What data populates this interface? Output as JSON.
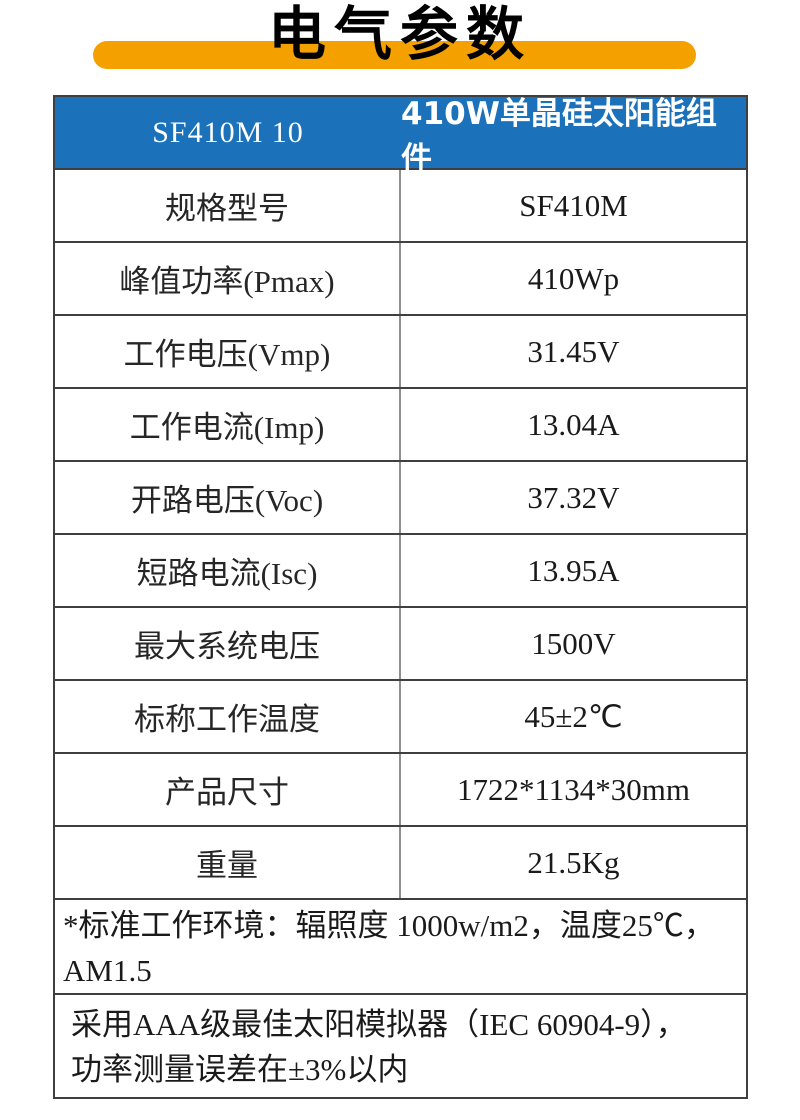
{
  "title": "电气参数",
  "colors": {
    "header_blue": "#1b71ba",
    "banner_orange": "#F4A100",
    "border_dark": "#3f3f3f"
  },
  "table": {
    "header": {
      "model_code": "SF410M 10",
      "product_name": "410W单晶硅太阳能组件"
    },
    "rows": [
      {
        "label": "规格型号",
        "value": "SF410M"
      },
      {
        "label": "峰值功率(Pmax)",
        "value": "410Wp"
      },
      {
        "label": "工作电压(Vmp)",
        "value": "31.45V"
      },
      {
        "label": "工作电流(Imp)",
        "value": "13.04A"
      },
      {
        "label": "开路电压(Voc)",
        "value": "37.32V"
      },
      {
        "label": "短路电流(Isc)",
        "value": "13.95A"
      },
      {
        "label": "最大系统电压",
        "value": "1500V"
      },
      {
        "label": "标称工作温度",
        "value": "45±2℃"
      },
      {
        "label": "产品尺寸",
        "value": "1722*1134*30mm"
      },
      {
        "label": "重量",
        "value": "21.5Kg"
      }
    ],
    "notes": [
      "*标准工作环境：辐照度 1000w/m2，温度25℃，\nAM1.5",
      "采用AAA级最佳太阳模拟器（IEC 60904-9），\n功率测量误差在±3%以内"
    ]
  }
}
